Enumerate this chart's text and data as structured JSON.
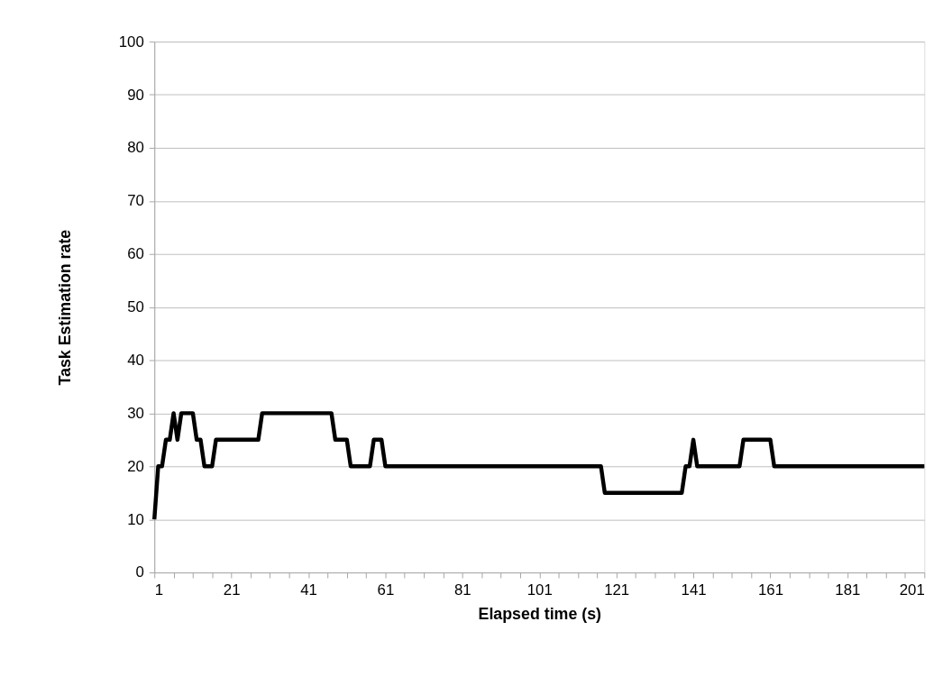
{
  "chart_data": {
    "type": "line",
    "xlabel": "Elapsed time (s)",
    "ylabel": "Task Estimation rate",
    "series": [
      {
        "color": "#000000",
        "x": [
          1,
          2,
          3,
          4,
          5,
          6,
          7,
          8,
          11,
          12,
          13,
          14,
          16,
          17,
          28,
          29,
          47,
          48,
          51,
          52,
          57,
          58,
          60,
          61,
          117,
          118,
          138,
          139,
          140,
          141,
          142,
          153,
          154,
          161,
          162,
          201
        ],
        "values": [
          10,
          20,
          20,
          25,
          25,
          30,
          25,
          30,
          30,
          25,
          25,
          20,
          20,
          25,
          25,
          30,
          30,
          25,
          25,
          20,
          20,
          25,
          25,
          20,
          20,
          15,
          15,
          20,
          20,
          25,
          20,
          20,
          25,
          25,
          20,
          20
        ]
      }
    ],
    "xlim": [
      1,
      201
    ],
    "xticks": [
      1,
      {
        "value": 6,
        "label": null
      },
      {
        "value": 11,
        "label": null
      },
      {
        "value": 16,
        "label": null
      },
      21,
      {
        "value": 26,
        "label": null
      },
      {
        "value": 31,
        "label": null
      },
      {
        "value": 36,
        "label": null
      },
      41,
      {
        "value": 46,
        "label": null
      },
      {
        "value": 51,
        "label": null
      },
      {
        "value": 56,
        "label": null
      },
      61,
      {
        "value": 66,
        "label": null
      },
      {
        "value": 71,
        "label": null
      },
      {
        "value": 76,
        "label": null
      },
      81,
      {
        "value": 86,
        "label": null
      },
      {
        "value": 91,
        "label": null
      },
      {
        "value": 96,
        "label": null
      },
      101,
      {
        "value": 106,
        "label": null
      },
      {
        "value": 111,
        "label": null
      },
      {
        "value": 116,
        "label": null
      },
      121,
      {
        "value": 126,
        "label": null
      },
      {
        "value": 131,
        "label": null
      },
      {
        "value": 136,
        "label": null
      },
      141,
      {
        "value": 146,
        "label": null
      },
      {
        "value": 151,
        "label": null
      },
      {
        "value": 156,
        "label": null
      },
      161,
      {
        "value": 166,
        "label": null
      },
      {
        "value": 171,
        "label": null
      },
      {
        "value": 176,
        "label": null
      },
      181,
      {
        "value": 186,
        "label": null
      },
      {
        "value": 191,
        "label": null
      },
      {
        "value": 196,
        "label": null
      },
      201
    ],
    "ylim": [
      0,
      100
    ],
    "yticks": [
      0,
      10,
      20,
      30,
      40,
      50,
      60,
      70,
      80,
      90,
      100
    ],
    "grid": "y",
    "marker": "none",
    "line_style": "solid"
  }
}
